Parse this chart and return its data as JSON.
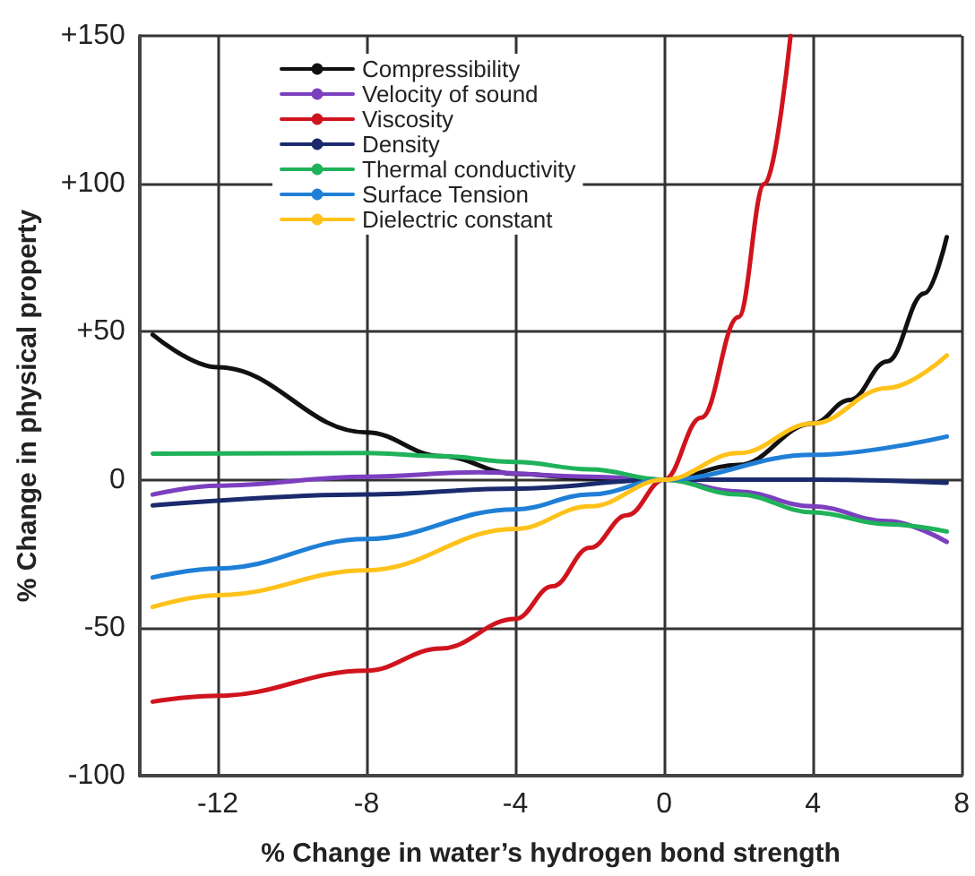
{
  "chart_data": {
    "type": "line",
    "xlabel": "% Change in water’s hydrogen bond strength",
    "ylabel": "% Change in physical property",
    "xlim": [
      -14.1,
      8
    ],
    "xticks": [
      -12,
      -8,
      -4,
      0,
      4,
      8
    ],
    "ylim": [
      -100,
      150
    ],
    "yticks": [
      -100,
      -50,
      0,
      {
        "value": 50,
        "label": "+50"
      },
      {
        "value": 100,
        "label": "+100"
      },
      {
        "value": 150,
        "label": "+150"
      }
    ],
    "grid": true,
    "legend": "top left",
    "marker": "none",
    "line_style": "solid",
    "series": [
      {
        "name": "Compressibility",
        "color": "#111111",
        "x": [
          -13.75,
          -12,
          -8,
          -6,
          -4,
          -2,
          0,
          2,
          4,
          5,
          6,
          7,
          7.6
        ],
        "values": [
          49,
          38,
          16,
          8,
          2,
          0.5,
          0,
          5,
          19,
          27,
          40,
          63,
          82
        ]
      },
      {
        "name": "Velocity of sound",
        "color": "#7b3fbf",
        "x": [
          -13.75,
          -12,
          -8,
          -5,
          -2,
          0,
          2,
          4,
          6,
          7.6
        ],
        "values": [
          -5,
          -2,
          1,
          2.5,
          1,
          0,
          -4,
          -9,
          -14,
          -21
        ]
      },
      {
        "name": "Viscosity",
        "color": "#d0141e",
        "x": [
          -13.75,
          -12,
          -8,
          -6,
          -4,
          -3,
          -2,
          -1,
          0,
          1,
          2,
          2.7,
          3.4
        ],
        "values": [
          -75,
          -73,
          -64.5,
          -57,
          -47,
          -36,
          -23,
          -12,
          0,
          21,
          55,
          100,
          150
        ]
      },
      {
        "name": "Density",
        "color": "#1a2a6c",
        "x": [
          -13.75,
          -8,
          -4,
          0,
          4,
          7.6
        ],
        "values": [
          -8.7,
          -5,
          -3,
          0,
          0,
          -1
        ]
      },
      {
        "name": "Thermal conductivity",
        "color": "#1fb25a",
        "x": [
          -13.75,
          -8,
          -6,
          -4,
          -2,
          0,
          2,
          4,
          6,
          7.6
        ],
        "values": [
          8.8,
          9,
          8,
          6,
          3.5,
          0,
          -5,
          -11,
          -15,
          -17.5
        ]
      },
      {
        "name": "Surface Tension",
        "color": "#1f7fd6",
        "x": [
          -13.75,
          -12,
          -8,
          -4,
          -2,
          0,
          4,
          7.6
        ],
        "values": [
          -33,
          -30,
          -20,
          -10,
          -5,
          0,
          8.4,
          14.6
        ]
      },
      {
        "name": "Dielectric constant",
        "color": "#ffc21a",
        "x": [
          -13.75,
          -12,
          -8,
          -4,
          -2,
          0,
          2,
          4,
          6,
          7.6
        ],
        "values": [
          -43,
          -39,
          -30.6,
          -16.6,
          -9,
          0,
          9,
          19,
          31,
          42
        ]
      }
    ]
  }
}
